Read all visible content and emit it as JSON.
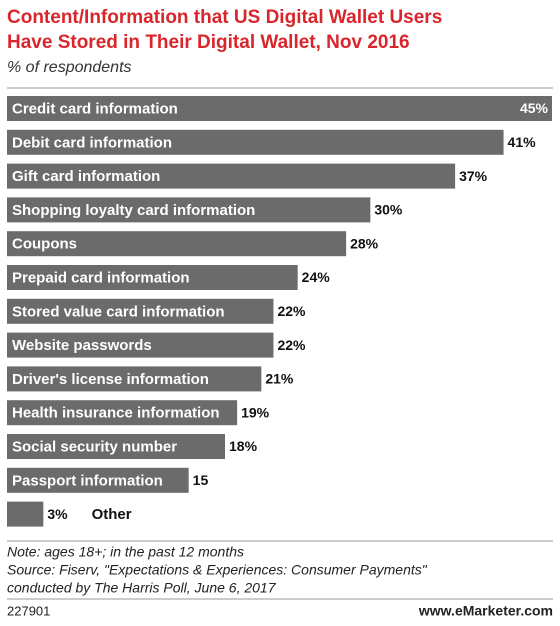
{
  "chart_data": {
    "type": "bar",
    "orientation": "horizontal",
    "title_lines": [
      "Content/Information that US Digital Wallet Users",
      "Have Stored in Their Digital Wallet, Nov 2016"
    ],
    "subtitle": "% of respondents",
    "categories": [
      "Credit card information",
      "Debit card information",
      "Gift card information",
      "Shopping loyalty card information",
      "Coupons",
      "Prepaid card information",
      "Stored value card information",
      "Website passwords",
      "Driver's license information",
      "Health insurance information",
      "Social security number",
      "Passport information",
      "Other"
    ],
    "values": [
      45,
      41,
      37,
      30,
      28,
      24,
      22,
      22,
      21,
      19,
      18,
      15,
      3
    ],
    "value_labels": [
      "45%",
      "41%",
      "37%",
      "30%",
      "28%",
      "24%",
      "22%",
      "22%",
      "21%",
      "19%",
      "18%",
      "15",
      "3%"
    ],
    "color": "#6b6b6b",
    "notes": [
      "Note: ages 18+; in the past 12 months",
      "Source: Fiserv, \"Expectations & Experiences: Consumer Payments\"",
      "conducted by The Harris Poll, June 6, 2017"
    ],
    "chart_id": "227901",
    "brand": "www.eMarketer.com"
  }
}
